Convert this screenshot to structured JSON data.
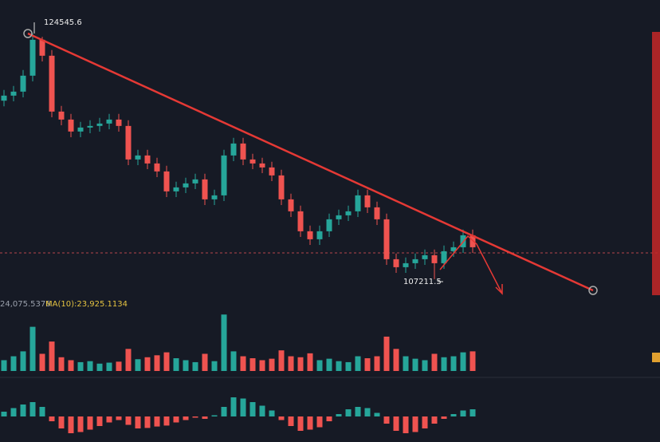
{
  "chart_data": {
    "type": "candlestick",
    "up_color": "#26a69a",
    "down_color": "#ef5350",
    "ylim": [
      105800,
      126900
    ],
    "open": [
      119800,
      120156,
      120438,
      121563,
      124095,
      122970,
      119031,
      118468,
      117624,
      117905,
      118018,
      118186,
      118468,
      118018,
      115654,
      115935,
      115372,
      114810,
      113403,
      113684,
      113965,
      114247,
      112840,
      113121,
      115935,
      116779,
      115654,
      115372,
      115091,
      114528,
      112840,
      111996,
      110589,
      110026,
      110589,
      111433,
      111714,
      111996,
      113121,
      112277,
      111433,
      108619,
      108056,
      108337,
      108619,
      108900,
      108337,
      109182,
      109463,
      110307
    ],
    "high": [
      120556,
      120838,
      121963,
      124545.6,
      124300,
      123370,
      119431,
      118868,
      118305,
      118418,
      118586,
      118868,
      118868,
      118418,
      116335,
      116335,
      115772,
      115210,
      114084,
      114365,
      114647,
      114647,
      113521,
      116335,
      117179,
      117179,
      116054,
      115772,
      115491,
      114928,
      113240,
      112396,
      110989,
      110989,
      111833,
      112114,
      112396,
      113521,
      113521,
      112677,
      111833,
      109019,
      108737,
      109019,
      109300,
      109300,
      109582,
      109863,
      110707,
      110707
    ],
    "low": [
      119400,
      119756,
      120038,
      121163,
      122570,
      118631,
      118068,
      117224,
      117224,
      117505,
      117618,
      117786,
      117618,
      115254,
      115254,
      114972,
      114410,
      113003,
      113003,
      113284,
      113565,
      112440,
      112440,
      112721,
      115535,
      115254,
      114972,
      114691,
      114128,
      112440,
      111596,
      110189,
      109626,
      109626,
      110189,
      111033,
      111314,
      111596,
      111877,
      111033,
      108219,
      107656,
      107656,
      107937,
      108219,
      107211.5,
      107937,
      108782,
      109063,
      109063
    ],
    "close": [
      120156,
      120438,
      121563,
      124095,
      122970,
      119031,
      118468,
      117624,
      117905,
      118018,
      118186,
      118468,
      118018,
      115654,
      115935,
      115372,
      114810,
      113403,
      113684,
      113965,
      114247,
      112840,
      113121,
      115935,
      116779,
      115654,
      115372,
      115091,
      114528,
      112840,
      111996,
      110589,
      110026,
      110589,
      111433,
      111714,
      111996,
      113121,
      112277,
      111433,
      108619,
      108056,
      108337,
      108619,
      108900,
      108337,
      109182,
      109463,
      110307,
      109463
    ],
    "high_label": "124545.6",
    "low_label": "107211.5",
    "volume_label": "24,075.5376",
    "ma_label": "MA(10):23,925.1134",
    "volume_ylim": [
      0,
      130000
    ],
    "volume": [
      22000,
      30000,
      40000,
      90000,
      35000,
      60000,
      28000,
      22000,
      18000,
      20000,
      15000,
      17000,
      19000,
      45000,
      24000,
      28000,
      32000,
      38000,
      26000,
      22000,
      18000,
      35000,
      20000,
      115000,
      40000,
      30000,
      26000,
      22000,
      25000,
      42000,
      30000,
      28000,
      36000,
      22000,
      25000,
      20000,
      18000,
      30000,
      26000,
      30000,
      70000,
      45000,
      30000,
      25000,
      22000,
      35000,
      28000,
      30000,
      38000,
      40000
    ],
    "macd_ylim": [
      -1000,
      1000
    ],
    "macd": [
      200,
      350,
      500,
      600,
      400,
      -200,
      -500,
      -700,
      -650,
      -550,
      -400,
      -250,
      -150,
      -350,
      -500,
      -480,
      -420,
      -380,
      -250,
      -150,
      -50,
      -100,
      50,
      400,
      800,
      750,
      600,
      450,
      250,
      -150,
      -400,
      -600,
      -550,
      -450,
      -200,
      100,
      300,
      400,
      350,
      150,
      -300,
      -600,
      -700,
      -650,
      -500,
      -300,
      -100,
      100,
      250,
      300
    ]
  }
}
